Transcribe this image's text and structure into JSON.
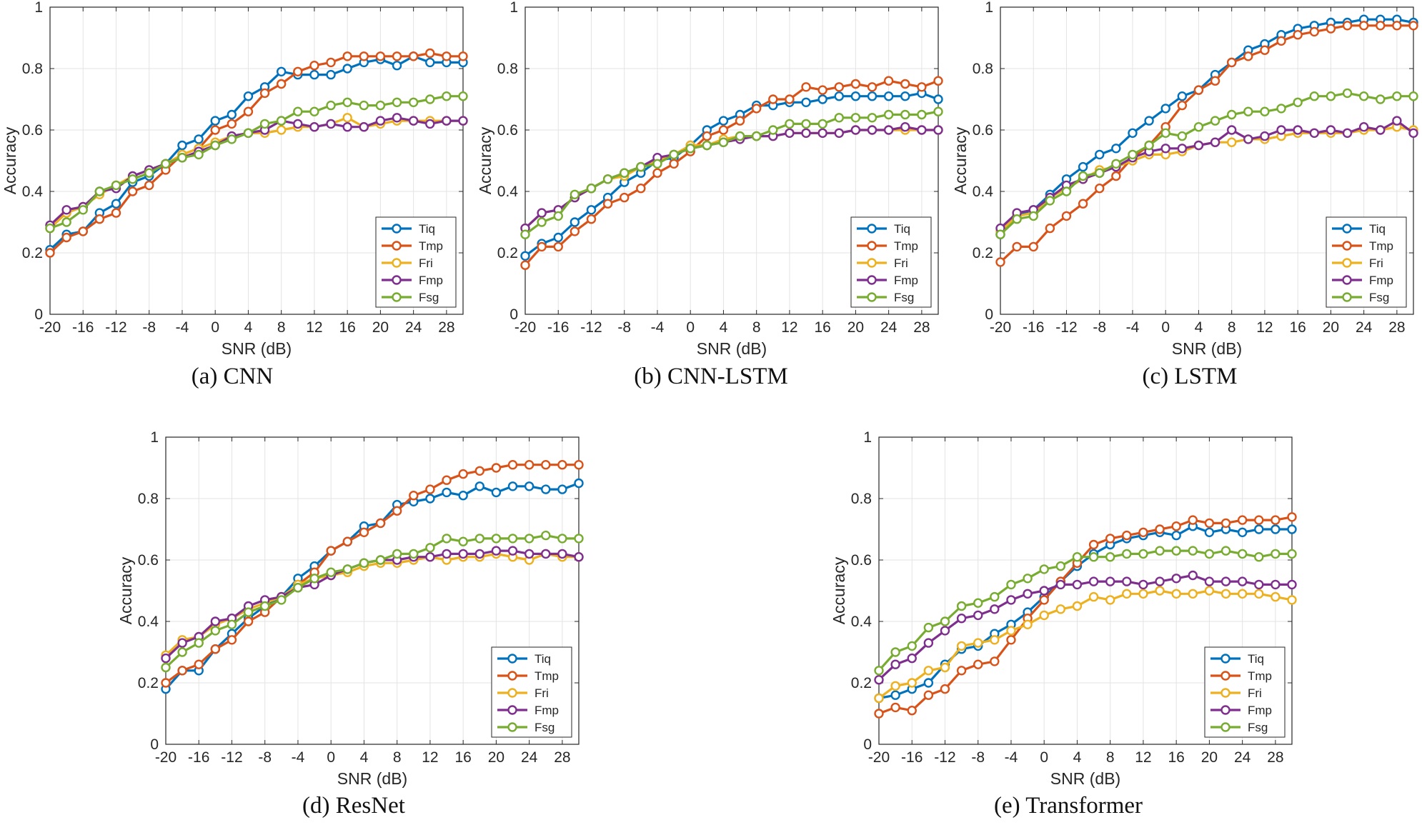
{
  "colors": {
    "Tiq": "#0072BD",
    "Tmp": "#D95319",
    "Fri": "#EDB120",
    "Fmp": "#7E2F8E",
    "Fsg": "#77AC30"
  },
  "chart_data": [
    {
      "type": "line",
      "caption": "(a)  CNN",
      "xlabel": "SNR (dB)",
      "ylabel": "Accuracy",
      "xlim": [
        -20,
        30
      ],
      "ylim": [
        0,
        1
      ],
      "xticks": [
        "-20",
        "-16",
        "-12",
        "-8",
        "-4",
        "0",
        "4",
        "8",
        "12",
        "16",
        "20",
        "24",
        "28"
      ],
      "yticks": [
        "0",
        "0.2",
        "0.4",
        "0.6",
        "0.8",
        "1"
      ],
      "grid": true,
      "legend": "bottom-right",
      "x": [
        -20,
        -18,
        -16,
        -14,
        -12,
        -10,
        -8,
        -6,
        -4,
        -2,
        0,
        2,
        4,
        6,
        8,
        10,
        12,
        14,
        16,
        18,
        20,
        22,
        24,
        26,
        28,
        30
      ],
      "series": [
        {
          "name": "Tiq",
          "values": [
            0.21,
            0.26,
            0.27,
            0.33,
            0.36,
            0.43,
            0.45,
            0.49,
            0.55,
            0.57,
            0.63,
            0.65,
            0.71,
            0.74,
            0.79,
            0.78,
            0.78,
            0.78,
            0.8,
            0.82,
            0.83,
            0.81,
            0.84,
            0.82,
            0.82,
            0.82
          ]
        },
        {
          "name": "Tmp",
          "values": [
            0.2,
            0.25,
            0.27,
            0.31,
            0.33,
            0.4,
            0.42,
            0.47,
            0.52,
            0.54,
            0.6,
            0.62,
            0.66,
            0.72,
            0.75,
            0.79,
            0.81,
            0.82,
            0.84,
            0.84,
            0.84,
            0.84,
            0.84,
            0.85,
            0.84,
            0.84
          ]
        },
        {
          "name": "Fri",
          "values": [
            0.28,
            0.33,
            0.35,
            0.39,
            0.42,
            0.45,
            0.47,
            0.49,
            0.52,
            0.54,
            0.56,
            0.58,
            0.59,
            0.59,
            0.6,
            0.61,
            0.61,
            0.62,
            0.64,
            0.61,
            0.62,
            0.63,
            0.63,
            0.63,
            0.63,
            0.63
          ]
        },
        {
          "name": "Fmp",
          "values": [
            0.29,
            0.34,
            0.35,
            0.4,
            0.41,
            0.45,
            0.47,
            0.49,
            0.51,
            0.53,
            0.55,
            0.58,
            0.59,
            0.6,
            0.63,
            0.62,
            0.61,
            0.62,
            0.61,
            0.61,
            0.63,
            0.64,
            0.63,
            0.62,
            0.63,
            0.63
          ]
        },
        {
          "name": "Fsg",
          "values": [
            0.28,
            0.3,
            0.34,
            0.4,
            0.42,
            0.44,
            0.46,
            0.49,
            0.51,
            0.52,
            0.55,
            0.57,
            0.59,
            0.62,
            0.63,
            0.66,
            0.66,
            0.68,
            0.69,
            0.68,
            0.68,
            0.69,
            0.69,
            0.7,
            0.71,
            0.71
          ]
        }
      ]
    },
    {
      "type": "line",
      "caption": "(b)  CNN-LSTM",
      "xlabel": "SNR (dB)",
      "ylabel": "Accuracy",
      "xlim": [
        -20,
        30
      ],
      "ylim": [
        0,
        1
      ],
      "xticks": [
        "-20",
        "-16",
        "-12",
        "-8",
        "-4",
        "0",
        "4",
        "8",
        "12",
        "16",
        "20",
        "24",
        "28"
      ],
      "yticks": [
        "0",
        "0.2",
        "0.4",
        "0.6",
        "0.8",
        "1"
      ],
      "grid": true,
      "legend": "bottom-right",
      "x": [
        -20,
        -18,
        -16,
        -14,
        -12,
        -10,
        -8,
        -6,
        -4,
        -2,
        0,
        2,
        4,
        6,
        8,
        10,
        12,
        14,
        16,
        18,
        20,
        22,
        24,
        26,
        28,
        30
      ],
      "series": [
        {
          "name": "Tiq",
          "values": [
            0.19,
            0.23,
            0.25,
            0.3,
            0.34,
            0.38,
            0.43,
            0.46,
            0.5,
            0.51,
            0.55,
            0.6,
            0.63,
            0.65,
            0.68,
            0.68,
            0.69,
            0.69,
            0.7,
            0.71,
            0.71,
            0.71,
            0.71,
            0.71,
            0.72,
            0.7
          ]
        },
        {
          "name": "Tmp",
          "values": [
            0.16,
            0.22,
            0.22,
            0.27,
            0.31,
            0.36,
            0.38,
            0.41,
            0.46,
            0.49,
            0.53,
            0.58,
            0.6,
            0.63,
            0.67,
            0.7,
            0.7,
            0.74,
            0.73,
            0.74,
            0.75,
            0.74,
            0.76,
            0.75,
            0.74,
            0.76
          ]
        },
        {
          "name": "Fri",
          "values": [
            0.28,
            0.33,
            0.34,
            0.38,
            0.41,
            0.44,
            0.45,
            0.48,
            0.5,
            0.52,
            0.55,
            0.55,
            0.57,
            0.58,
            0.58,
            0.58,
            0.59,
            0.59,
            0.59,
            0.59,
            0.6,
            0.6,
            0.6,
            0.6,
            0.6,
            0.6
          ]
        },
        {
          "name": "Fmp",
          "values": [
            0.28,
            0.33,
            0.34,
            0.38,
            0.41,
            0.44,
            0.46,
            0.48,
            0.51,
            0.52,
            0.54,
            0.55,
            0.56,
            0.57,
            0.58,
            0.58,
            0.59,
            0.59,
            0.59,
            0.59,
            0.6,
            0.6,
            0.6,
            0.61,
            0.6,
            0.6
          ]
        },
        {
          "name": "Fsg",
          "values": [
            0.26,
            0.3,
            0.32,
            0.39,
            0.41,
            0.44,
            0.46,
            0.48,
            0.49,
            0.52,
            0.54,
            0.55,
            0.56,
            0.58,
            0.58,
            0.6,
            0.62,
            0.62,
            0.62,
            0.64,
            0.64,
            0.64,
            0.65,
            0.65,
            0.65,
            0.66
          ]
        }
      ]
    },
    {
      "type": "line",
      "caption": "(c)  LSTM",
      "xlabel": "SNR (dB)",
      "ylabel": "Accuracy",
      "xlim": [
        -20,
        30
      ],
      "ylim": [
        0,
        1
      ],
      "xticks": [
        "-20",
        "-16",
        "-12",
        "-8",
        "-4",
        "0",
        "4",
        "8",
        "12",
        "16",
        "20",
        "24",
        "28"
      ],
      "yticks": [
        "0",
        "0.2",
        "0.4",
        "0.6",
        "0.8",
        "1"
      ],
      "grid": true,
      "legend": "bottom-right",
      "x": [
        -20,
        -18,
        -16,
        -14,
        -12,
        -10,
        -8,
        -6,
        -4,
        -2,
        0,
        2,
        4,
        6,
        8,
        10,
        12,
        14,
        16,
        18,
        20,
        22,
        24,
        26,
        28,
        30
      ],
      "series": [
        {
          "name": "Tiq",
          "values": [
            0.26,
            0.32,
            0.34,
            0.39,
            0.44,
            0.48,
            0.52,
            0.54,
            0.59,
            0.63,
            0.67,
            0.71,
            0.73,
            0.78,
            0.82,
            0.86,
            0.88,
            0.91,
            0.93,
            0.94,
            0.95,
            0.95,
            0.96,
            0.96,
            0.96,
            0.95
          ]
        },
        {
          "name": "Tmp",
          "values": [
            0.17,
            0.22,
            0.22,
            0.28,
            0.32,
            0.36,
            0.41,
            0.45,
            0.51,
            0.55,
            0.61,
            0.68,
            0.73,
            0.76,
            0.82,
            0.84,
            0.86,
            0.89,
            0.91,
            0.92,
            0.93,
            0.94,
            0.94,
            0.94,
            0.94,
            0.94
          ]
        },
        {
          "name": "Fri",
          "values": [
            0.27,
            0.32,
            0.33,
            0.38,
            0.41,
            0.44,
            0.47,
            0.48,
            0.5,
            0.52,
            0.52,
            0.53,
            0.55,
            0.56,
            0.56,
            0.57,
            0.57,
            0.58,
            0.59,
            0.59,
            0.59,
            0.59,
            0.6,
            0.6,
            0.61,
            0.6
          ]
        },
        {
          "name": "Fmp",
          "values": [
            0.28,
            0.33,
            0.34,
            0.38,
            0.42,
            0.44,
            0.46,
            0.48,
            0.51,
            0.53,
            0.54,
            0.54,
            0.55,
            0.56,
            0.6,
            0.57,
            0.58,
            0.6,
            0.6,
            0.59,
            0.6,
            0.59,
            0.61,
            0.6,
            0.63,
            0.59
          ]
        },
        {
          "name": "Fsg",
          "values": [
            0.26,
            0.31,
            0.32,
            0.37,
            0.4,
            0.45,
            0.46,
            0.49,
            0.52,
            0.55,
            0.59,
            0.58,
            0.61,
            0.63,
            0.65,
            0.66,
            0.66,
            0.67,
            0.69,
            0.71,
            0.71,
            0.72,
            0.71,
            0.7,
            0.71,
            0.71
          ]
        }
      ]
    },
    {
      "type": "line",
      "caption": "(d)  ResNet",
      "xlabel": "SNR (dB)",
      "ylabel": "Accuracy",
      "xlim": [
        -20,
        30
      ],
      "ylim": [
        0,
        1
      ],
      "xticks": [
        "-20",
        "-16",
        "-12",
        "-8",
        "-4",
        "0",
        "4",
        "8",
        "12",
        "16",
        "20",
        "24",
        "28"
      ],
      "yticks": [
        "0",
        "0.2",
        "0.4",
        "0.6",
        "0.8",
        "1"
      ],
      "grid": true,
      "legend": "bottom-right",
      "x": [
        -20,
        -18,
        -16,
        -14,
        -12,
        -10,
        -8,
        -6,
        -4,
        -2,
        0,
        2,
        4,
        6,
        8,
        10,
        12,
        14,
        16,
        18,
        20,
        22,
        24,
        26,
        28,
        30
      ],
      "series": [
        {
          "name": "Tiq",
          "values": [
            0.18,
            0.24,
            0.24,
            0.31,
            0.36,
            0.41,
            0.45,
            0.48,
            0.54,
            0.58,
            0.63,
            0.66,
            0.71,
            0.72,
            0.78,
            0.79,
            0.8,
            0.82,
            0.81,
            0.84,
            0.82,
            0.84,
            0.84,
            0.83,
            0.83,
            0.85
          ]
        },
        {
          "name": "Tmp",
          "values": [
            0.2,
            0.24,
            0.26,
            0.31,
            0.34,
            0.4,
            0.43,
            0.48,
            0.52,
            0.56,
            0.63,
            0.66,
            0.69,
            0.72,
            0.76,
            0.81,
            0.83,
            0.86,
            0.88,
            0.89,
            0.9,
            0.91,
            0.91,
            0.91,
            0.91,
            0.91
          ]
        },
        {
          "name": "Fri",
          "values": [
            0.29,
            0.34,
            0.35,
            0.39,
            0.41,
            0.44,
            0.46,
            0.48,
            0.52,
            0.54,
            0.55,
            0.56,
            0.58,
            0.59,
            0.59,
            0.6,
            0.61,
            0.6,
            0.61,
            0.61,
            0.62,
            0.61,
            0.6,
            0.62,
            0.61,
            0.61
          ]
        },
        {
          "name": "Fmp",
          "values": [
            0.28,
            0.33,
            0.35,
            0.4,
            0.41,
            0.45,
            0.47,
            0.48,
            0.51,
            0.52,
            0.55,
            0.57,
            0.59,
            0.6,
            0.6,
            0.61,
            0.61,
            0.62,
            0.62,
            0.62,
            0.63,
            0.63,
            0.62,
            0.62,
            0.62,
            0.61
          ]
        },
        {
          "name": "Fsg",
          "values": [
            0.25,
            0.3,
            0.33,
            0.37,
            0.39,
            0.43,
            0.45,
            0.47,
            0.51,
            0.54,
            0.56,
            0.57,
            0.59,
            0.6,
            0.62,
            0.62,
            0.64,
            0.67,
            0.66,
            0.67,
            0.67,
            0.67,
            0.67,
            0.68,
            0.67,
            0.67
          ]
        }
      ]
    },
    {
      "type": "line",
      "caption": "(e)  Transformer",
      "xlabel": "SNR (dB)",
      "ylabel": "Accuracy",
      "xlim": [
        -20,
        30
      ],
      "ylim": [
        0,
        1
      ],
      "xticks": [
        "-20",
        "-16",
        "-12",
        "-8",
        "-4",
        "0",
        "4",
        "8",
        "12",
        "16",
        "20",
        "24",
        "28"
      ],
      "yticks": [
        "0",
        "0.2",
        "0.4",
        "0.6",
        "0.8",
        "1"
      ],
      "grid": true,
      "legend": "bottom-right",
      "x": [
        -20,
        -18,
        -16,
        -14,
        -12,
        -10,
        -8,
        -6,
        -4,
        -2,
        0,
        2,
        4,
        6,
        8,
        10,
        12,
        14,
        16,
        18,
        20,
        22,
        24,
        26,
        28,
        30
      ],
      "series": [
        {
          "name": "Tiq",
          "values": [
            0.15,
            0.16,
            0.18,
            0.2,
            0.26,
            0.31,
            0.32,
            0.36,
            0.39,
            0.43,
            0.48,
            0.53,
            0.58,
            0.62,
            0.65,
            0.67,
            0.68,
            0.69,
            0.68,
            0.71,
            0.69,
            0.7,
            0.69,
            0.7,
            0.7,
            0.7
          ]
        },
        {
          "name": "Tmp",
          "values": [
            0.1,
            0.12,
            0.11,
            0.16,
            0.18,
            0.24,
            0.26,
            0.27,
            0.34,
            0.41,
            0.47,
            0.53,
            0.59,
            0.65,
            0.67,
            0.68,
            0.69,
            0.7,
            0.71,
            0.73,
            0.72,
            0.72,
            0.73,
            0.73,
            0.73,
            0.74
          ]
        },
        {
          "name": "Fri",
          "values": [
            0.15,
            0.19,
            0.2,
            0.24,
            0.25,
            0.32,
            0.33,
            0.34,
            0.37,
            0.39,
            0.42,
            0.44,
            0.45,
            0.48,
            0.47,
            0.49,
            0.49,
            0.5,
            0.49,
            0.49,
            0.5,
            0.49,
            0.49,
            0.49,
            0.48,
            0.47
          ]
        },
        {
          "name": "Fmp",
          "values": [
            0.21,
            0.26,
            0.28,
            0.33,
            0.37,
            0.41,
            0.42,
            0.44,
            0.47,
            0.49,
            0.5,
            0.52,
            0.52,
            0.53,
            0.53,
            0.53,
            0.52,
            0.53,
            0.54,
            0.55,
            0.53,
            0.53,
            0.53,
            0.52,
            0.52,
            0.52
          ]
        },
        {
          "name": "Fsg",
          "values": [
            0.24,
            0.3,
            0.32,
            0.38,
            0.4,
            0.45,
            0.46,
            0.48,
            0.52,
            0.54,
            0.57,
            0.58,
            0.61,
            0.61,
            0.61,
            0.62,
            0.62,
            0.63,
            0.63,
            0.63,
            0.62,
            0.63,
            0.62,
            0.61,
            0.62,
            0.62
          ]
        }
      ]
    }
  ]
}
